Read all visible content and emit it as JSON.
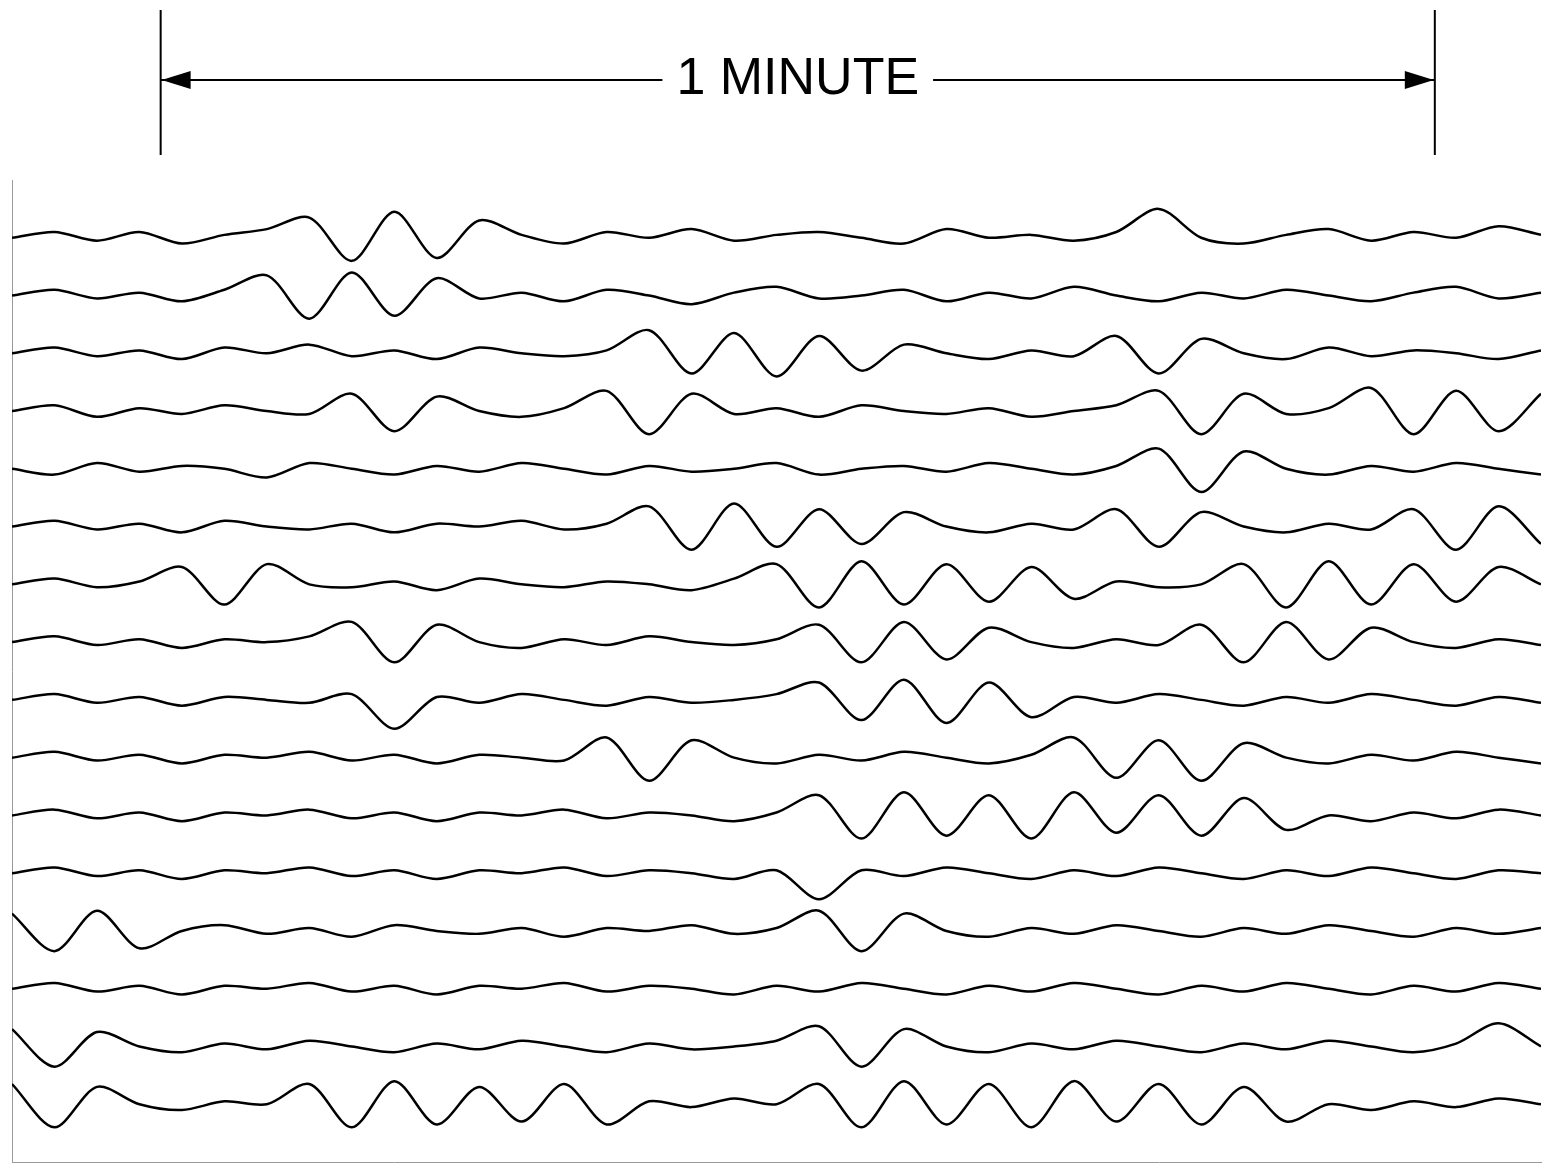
{
  "chart_data": {
    "type": "line",
    "annotations": [
      {
        "text": "1 MINUTE",
        "x_start": 7,
        "x_end": 67
      }
    ],
    "x": [
      0,
      2,
      4,
      6,
      8,
      10,
      12,
      14,
      16,
      18,
      20,
      22,
      24,
      26,
      28,
      30,
      32,
      34,
      36,
      38,
      40,
      42,
      44,
      46,
      48,
      50,
      52,
      54,
      56,
      58,
      60,
      62,
      64,
      66,
      68,
      70,
      72
    ],
    "xlim": [
      0,
      72
    ],
    "ylim": [
      10,
      350
    ],
    "tick_labels": false,
    "grid": false,
    "series": [
      {
        "color": "#000000",
        "values": [
          330,
          332,
          329,
          332,
          328,
          331,
          333,
          337,
          322,
          339,
          323,
          336,
          331,
          328,
          332,
          330,
          333,
          329,
          331,
          332,
          330,
          328,
          333,
          330,
          331,
          329,
          332,
          340,
          330,
          328,
          331,
          333,
          329,
          332,
          330,
          334,
          331
        ]
      },
      {
        "color": "#000000",
        "values": [
          310,
          312,
          309,
          311,
          308,
          312,
          317,
          302,
          318,
          303,
          316,
          309,
          311,
          308,
          312,
          310,
          307,
          311,
          313,
          309,
          310,
          312,
          308,
          311,
          309,
          313,
          310,
          308,
          311,
          309,
          312,
          310,
          308,
          311,
          313,
          309,
          311
        ]
      },
      {
        "color": "#000000",
        "values": [
          290,
          292,
          289,
          291,
          288,
          292,
          290,
          293,
          289,
          291,
          288,
          292,
          290,
          289,
          291,
          298,
          283,
          297,
          282,
          296,
          284,
          293,
          290,
          288,
          291,
          289,
          296,
          283,
          295,
          290,
          288,
          292,
          289,
          291,
          290,
          288,
          291
        ]
      },
      {
        "color": "#000000",
        "values": [
          270,
          272,
          268,
          271,
          269,
          272,
          270,
          269,
          276,
          263,
          275,
          270,
          268,
          271,
          277,
          262,
          276,
          269,
          271,
          268,
          272,
          270,
          269,
          271,
          268,
          270,
          272,
          277,
          262,
          276,
          269,
          271,
          278,
          262,
          277,
          263,
          276
        ]
      },
      {
        "color": "#000000",
        "values": [
          250,
          248,
          252,
          249,
          251,
          250,
          247,
          252,
          250,
          248,
          251,
          249,
          252,
          250,
          248,
          251,
          249,
          250,
          252,
          248,
          250,
          251,
          249,
          252,
          250,
          248,
          251,
          257,
          242,
          256,
          250,
          248,
          251,
          249,
          252,
          250,
          248
        ]
      },
      {
        "color": "#000000",
        "values": [
          230,
          232,
          229,
          231,
          228,
          232,
          230,
          229,
          231,
          228,
          231,
          230,
          232,
          229,
          231,
          237,
          222,
          238,
          223,
          236,
          224,
          235,
          230,
          228,
          231,
          229,
          236,
          223,
          235,
          230,
          228,
          231,
          229,
          236,
          222,
          237,
          224
        ]
      },
      {
        "color": "#000000",
        "values": [
          210,
          212,
          209,
          211,
          216,
          203,
          217,
          210,
          209,
          211,
          208,
          212,
          210,
          209,
          211,
          210,
          208,
          212,
          217,
          202,
          218,
          203,
          217,
          204,
          216,
          205,
          211,
          209,
          210,
          217,
          202,
          218,
          203,
          217,
          204,
          216,
          210
        ]
      },
      {
        "color": "#000000",
        "values": [
          190,
          192,
          189,
          191,
          188,
          191,
          190,
          192,
          197,
          183,
          196,
          190,
          188,
          191,
          189,
          192,
          190,
          189,
          191,
          196,
          183,
          197,
          184,
          195,
          190,
          188,
          191,
          189,
          196,
          183,
          197,
          184,
          195,
          190,
          188,
          191,
          189
        ]
      },
      {
        "color": "#000000",
        "values": [
          170,
          172,
          169,
          171,
          168,
          171,
          170,
          169,
          172,
          160,
          171,
          169,
          172,
          170,
          168,
          171,
          169,
          170,
          172,
          176,
          163,
          177,
          162,
          176,
          164,
          171,
          169,
          172,
          170,
          168,
          171,
          169,
          172,
          170,
          168,
          171,
          169
        ]
      },
      {
        "color": "#000000",
        "values": [
          150,
          152,
          149,
          151,
          148,
          151,
          150,
          152,
          149,
          151,
          148,
          151,
          150,
          149,
          157,
          142,
          156,
          150,
          148,
          151,
          149,
          152,
          150,
          148,
          151,
          157,
          143,
          156,
          142,
          155,
          150,
          148,
          151,
          149,
          152,
          150,
          148
        ]
      },
      {
        "color": "#000000",
        "values": [
          130,
          132,
          129,
          131,
          128,
          131,
          130,
          132,
          129,
          131,
          128,
          131,
          130,
          132,
          129,
          131,
          130,
          128,
          131,
          137,
          122,
          138,
          123,
          137,
          122,
          138,
          124,
          137,
          123,
          136,
          125,
          130,
          128,
          131,
          129,
          132,
          130
        ]
      },
      {
        "color": "#000000",
        "values": [
          110,
          112,
          109,
          111,
          108,
          111,
          110,
          112,
          109,
          111,
          108,
          111,
          110,
          112,
          109,
          111,
          110,
          108,
          111,
          101,
          111,
          109,
          112,
          110,
          108,
          111,
          109,
          112,
          110,
          108,
          111,
          109,
          112,
          110,
          108,
          111,
          110
        ]
      },
      {
        "color": "#000000",
        "values": [
          96,
          83,
          97,
          84,
          90,
          92,
          89,
          91,
          88,
          92,
          90,
          89,
          91,
          88,
          91,
          90,
          92,
          89,
          91,
          97,
          83,
          96,
          90,
          88,
          91,
          89,
          92,
          90,
          88,
          91,
          89,
          92,
          90,
          88,
          91,
          89,
          91
        ]
      },
      {
        "color": "#000000",
        "values": [
          70,
          72,
          69,
          71,
          68,
          71,
          70,
          72,
          69,
          71,
          68,
          71,
          70,
          72,
          69,
          71,
          70,
          68,
          71,
          69,
          72,
          70,
          68,
          71,
          69,
          72,
          70,
          68,
          71,
          69,
          72,
          70,
          68,
          71,
          69,
          72,
          70
        ]
      },
      {
        "color": "#000000",
        "values": [
          56,
          43,
          55,
          50,
          48,
          51,
          49,
          52,
          50,
          48,
          51,
          49,
          52,
          50,
          48,
          51,
          49,
          50,
          52,
          57,
          43,
          56,
          50,
          48,
          51,
          49,
          52,
          50,
          48,
          51,
          49,
          52,
          50,
          48,
          51,
          58,
          50
        ]
      },
      {
        "color": "#000000",
        "values": [
          37,
          22,
          36,
          30,
          28,
          31,
          30,
          37,
          22,
          38,
          23,
          36,
          24,
          37,
          23,
          31,
          29,
          32,
          30,
          37,
          22,
          38,
          23,
          37,
          22,
          38,
          24,
          37,
          23,
          36,
          24,
          30,
          28,
          31,
          29,
          32,
          30
        ]
      }
    ]
  }
}
